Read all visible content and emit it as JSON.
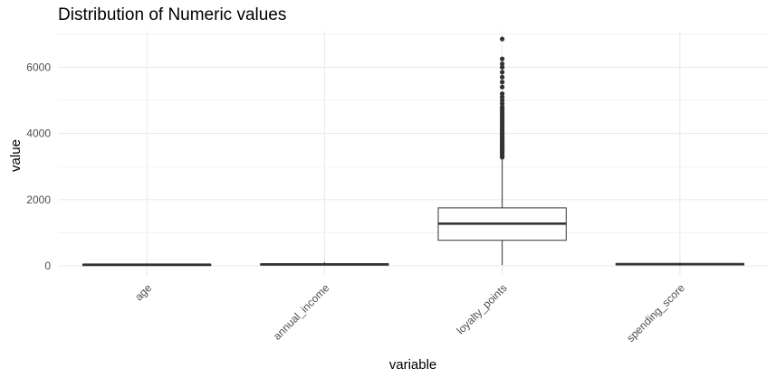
{
  "chart_data": {
    "type": "boxplot",
    "title": "Distribution of Numeric values",
    "xlabel": "variable",
    "ylabel": "value",
    "categories": [
      "age",
      "annual_income",
      "loyalty_points",
      "spending_score"
    ],
    "ylim": [
      -300,
      7100
    ],
    "yticks": [
      0,
      2000,
      4000,
      6000
    ],
    "grid": true,
    "boxes": [
      {
        "category": "age",
        "min": 17,
        "q1": 29,
        "median": 38,
        "q3": 49,
        "max": 72,
        "outliers": []
      },
      {
        "category": "annual_income",
        "min": 12,
        "q1": 30,
        "median": 47,
        "q3": 63,
        "max": 113,
        "outliers": []
      },
      {
        "category": "loyalty_points",
        "min": 25,
        "q1": 772,
        "median": 1276,
        "q3": 1751,
        "max": 3230,
        "outliers": [
          3280,
          3320,
          3360,
          3400,
          3440,
          3480,
          3520,
          3560,
          3600,
          3640,
          3680,
          3720,
          3760,
          3800,
          3850,
          3900,
          3950,
          4000,
          4050,
          4100,
          4150,
          4200,
          4260,
          4320,
          4380,
          4440,
          4500,
          4560,
          4620,
          4680,
          4740,
          4800,
          4900,
          5000,
          5100,
          5200,
          5400,
          5550,
          5700,
          5850,
          6000,
          6100,
          6250,
          6850
        ]
      },
      {
        "category": "spending_score",
        "min": 1,
        "q1": 32,
        "median": 50,
        "q3": 73,
        "max": 99,
        "outliers": []
      }
    ]
  },
  "colors": {
    "grid": "#ebebeb",
    "box_stroke": "#333333",
    "box_fill": "#ffffff",
    "tick_text": "#4d4d4d",
    "title_text": "#000000"
  }
}
